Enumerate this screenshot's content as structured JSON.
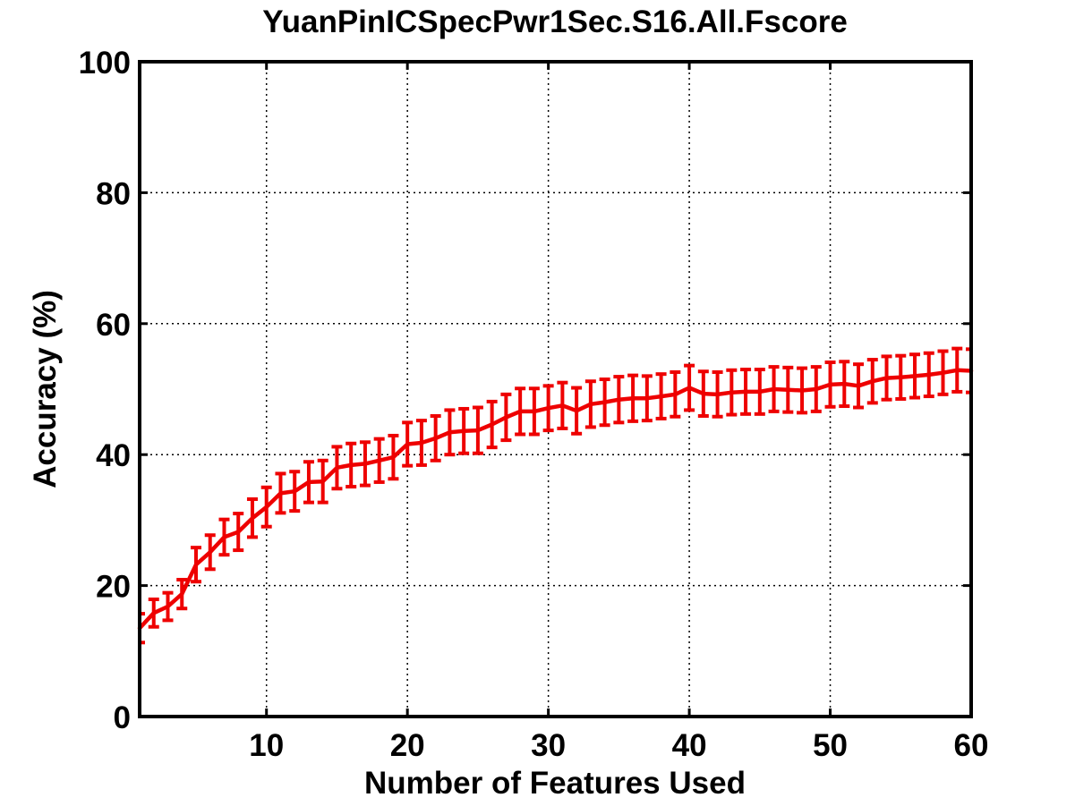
{
  "chart_data": {
    "type": "line",
    "title": "YuanPinICSpecPwr1Sec.S16.All.Fscore",
    "xlabel": "Number of Features Used",
    "ylabel": "Accuracy (%)",
    "xlim": [
      1,
      60
    ],
    "ylim": [
      0,
      100
    ],
    "xticks": [
      10,
      20,
      30,
      40,
      50,
      60
    ],
    "yticks": [
      0,
      20,
      40,
      60,
      80,
      100
    ],
    "grid": true,
    "line_color": "#ee0000",
    "series": [
      {
        "x": [
          1,
          2,
          3,
          4,
          5,
          6,
          7,
          8,
          9,
          10,
          11,
          12,
          13,
          14,
          15,
          16,
          17,
          18,
          19,
          20,
          21,
          22,
          23,
          24,
          25,
          26,
          27,
          28,
          29,
          30,
          31,
          32,
          33,
          34,
          35,
          36,
          37,
          38,
          39,
          40,
          41,
          42,
          43,
          44,
          45,
          46,
          47,
          48,
          49,
          50,
          51,
          52,
          53,
          54,
          55,
          56,
          57,
          58,
          59,
          60
        ],
        "values": [
          13.5,
          15.8,
          16.8,
          18.7,
          23.2,
          25.1,
          27.4,
          28.2,
          30.3,
          32.0,
          34.1,
          34.4,
          35.8,
          35.9,
          38.0,
          38.4,
          38.6,
          39.1,
          39.6,
          41.6,
          41.8,
          42.5,
          43.4,
          43.6,
          43.7,
          44.6,
          45.7,
          46.6,
          46.6,
          47.1,
          47.5,
          46.7,
          47.7,
          48.0,
          48.4,
          48.6,
          48.6,
          48.9,
          49.2,
          50.2,
          49.3,
          49.2,
          49.5,
          49.6,
          49.6,
          50.0,
          49.9,
          49.8,
          50.0,
          50.7,
          50.8,
          50.5,
          51.2,
          51.7,
          51.8,
          52.0,
          52.2,
          52.5,
          52.9,
          52.8
        ],
        "error": [
          2.2,
          2.1,
          2.1,
          2.2,
          2.6,
          2.6,
          2.7,
          2.8,
          2.9,
          3.0,
          3.0,
          3.0,
          3.1,
          3.2,
          3.2,
          3.3,
          3.3,
          3.3,
          3.3,
          3.3,
          3.4,
          3.4,
          3.4,
          3.4,
          3.5,
          3.5,
          3.5,
          3.5,
          3.5,
          3.4,
          3.5,
          3.5,
          3.5,
          3.5,
          3.5,
          3.5,
          3.4,
          3.4,
          3.4,
          3.4,
          3.4,
          3.4,
          3.4,
          3.4,
          3.4,
          3.4,
          3.4,
          3.4,
          3.4,
          3.4,
          3.4,
          3.3,
          3.3,
          3.3,
          3.3,
          3.3,
          3.3,
          3.3,
          3.3,
          3.3
        ]
      }
    ]
  }
}
